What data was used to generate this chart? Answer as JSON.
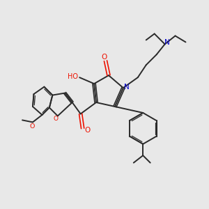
{
  "bg_color": "#e8e8e8",
  "bond_color": "#2a2a2a",
  "oxygen_color": "#ee1100",
  "nitrogen_color": "#0000cc",
  "figsize": [
    3.0,
    3.0
  ],
  "dpi": 100,
  "xlim": [
    0,
    10
  ],
  "ylim": [
    0,
    10
  ]
}
